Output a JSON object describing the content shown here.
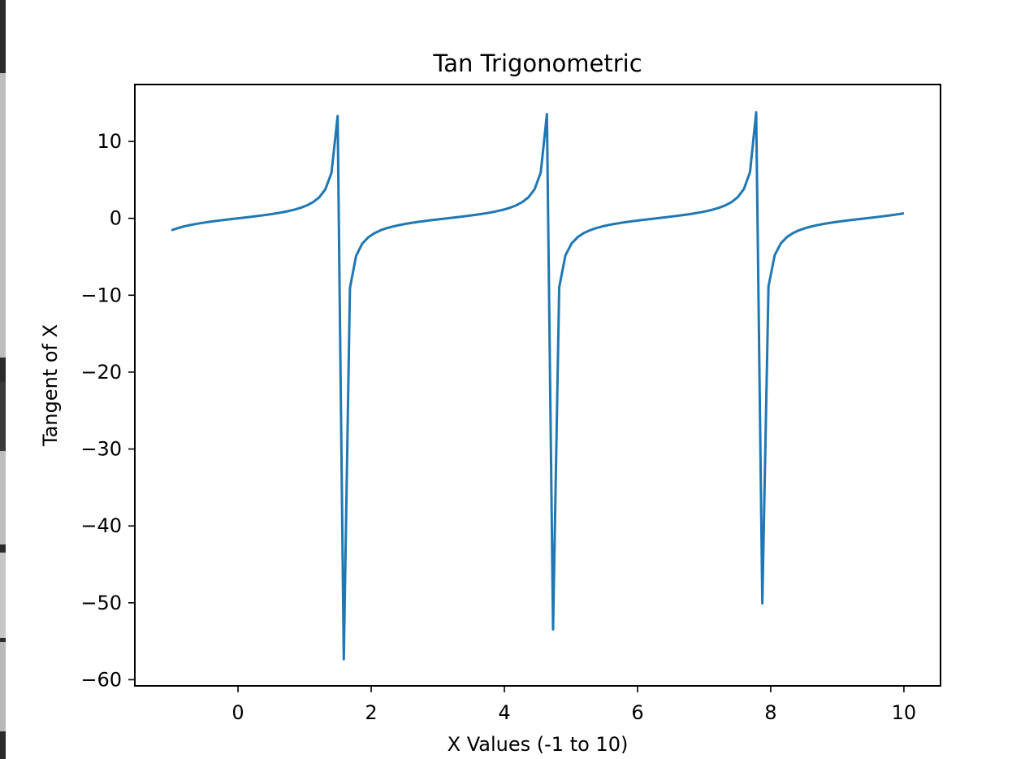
{
  "chart_data": {
    "type": "line",
    "title": "Tan Trigonometric",
    "xlabel": "X Values (-1 to 10)",
    "ylabel": "Tangent of X",
    "xlim": [
      -1.55,
      10.55
    ],
    "ylim": [
      -60.8,
      17.4
    ],
    "xticks": [
      0,
      2,
      4,
      6,
      8,
      10
    ],
    "xtick_labels": [
      "0",
      "2",
      "4",
      "6",
      "8",
      "10"
    ],
    "yticks": [
      10,
      0,
      -10,
      -20,
      -30,
      -40,
      -50,
      -60
    ],
    "ytick_labels": [
      "10",
      "0",
      "−10",
      "−20",
      "−30",
      "−40",
      "−50",
      "−60"
    ],
    "grid": false,
    "line_color": "#1f77b4",
    "sampling": {
      "start": -1,
      "end": 10,
      "count": 120
    },
    "series": [
      {
        "name": "",
        "function": "tan(x)"
      }
    ]
  }
}
